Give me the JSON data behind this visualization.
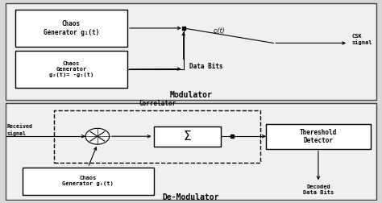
{
  "bg_outer": "#d8d8d8",
  "bg_panel": "#f0f0f0",
  "box_face": "#ffffff",
  "box_edge": "#000000",
  "title_mod": "Modulator",
  "title_demod": "De-Modulator",
  "box1_text": "Chaos\nGenerator g₁(t)",
  "box2_text": "Chaos\nGenerator\ng₂(t)= -g₁(t)",
  "box3_text": "Chaos\nGenerator g₁(t)",
  "box4_text": "Σ",
  "box5_text": "Thereshold\nDetector",
  "label_csk": "CSK\nsignal",
  "label_ci": "cᵢ(t)",
  "label_databits_mod": "Data Bits",
  "label_received": "Received\nsignal",
  "label_correlator": "Correlator",
  "label_decoded": "Decoded\nData Bits"
}
